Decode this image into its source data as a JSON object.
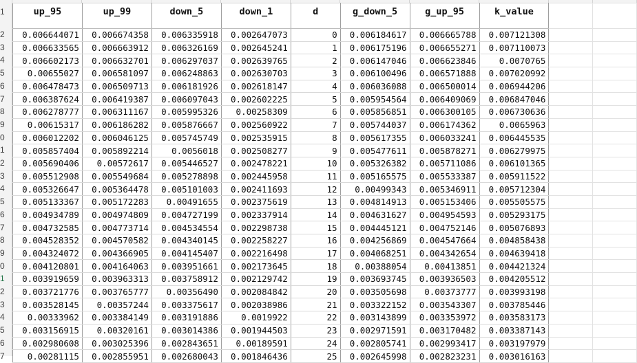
{
  "spreadsheet": {
    "headers": [
      "up_95",
      "up_99",
      "down_5",
      "down_1",
      "d",
      "g_down_5",
      "g_up_95",
      "k_value"
    ],
    "row_numbers": [
      "1",
      "2",
      "3",
      "4",
      "5",
      "6",
      "7",
      "8",
      "9",
      "0",
      "1",
      "2",
      "3",
      "4",
      "5",
      "6",
      "7",
      "8",
      "9",
      "0",
      "1",
      "2",
      "3",
      "4",
      "5",
      "6",
      "7"
    ],
    "selected_row_index": 20,
    "rows": [
      [
        "0.006644071",
        "0.006674358",
        "0.006335918",
        "0.002647073",
        "0",
        "0.006184617",
        "0.006665788",
        "0.007121308"
      ],
      [
        "0.006633565",
        "0.006663912",
        "0.006326169",
        "0.002645241",
        "1",
        "0.006175196",
        "0.006655271",
        "0.007110073"
      ],
      [
        "0.006602173",
        "0.006632701",
        "0.006297037",
        "0.002639765",
        "2",
        "0.006147046",
        "0.006623846",
        "0.0070765"
      ],
      [
        "0.00655027",
        "0.006581097",
        "0.006248863",
        "0.002630703",
        "3",
        "0.006100496",
        "0.006571888",
        "0.007020992"
      ],
      [
        "0.006478473",
        "0.006509713",
        "0.006181926",
        "0.002618147",
        "4",
        "0.006036088",
        "0.006500014",
        "0.006944206"
      ],
      [
        "0.006387624",
        "0.006419387",
        "0.006097043",
        "0.002602225",
        "5",
        "0.005954564",
        "0.006409069",
        "0.006847046"
      ],
      [
        "0.006278777",
        "0.006311167",
        "0.005995326",
        "0.00258309",
        "6",
        "0.005856851",
        "0.006300105",
        "0.006730636"
      ],
      [
        "0.00615317",
        "0.006186282",
        "0.005876667",
        "0.002560922",
        "7",
        "0.005744037",
        "0.006174362",
        "0.0065963"
      ],
      [
        "0.006012202",
        "0.006046125",
        "0.005745749",
        "0.002535915",
        "8",
        "0.005617355",
        "0.006033241",
        "0.006445535"
      ],
      [
        "0.005857404",
        "0.005892214",
        "0.0056018",
        "0.002508277",
        "9",
        "0.005477611",
        "0.005878271",
        "0.006279975"
      ],
      [
        "0.005690406",
        "0.00572617",
        "0.005446527",
        "0.002478221",
        "10",
        "0.005326382",
        "0.005711086",
        "0.006101365"
      ],
      [
        "0.005512908",
        "0.005549684",
        "0.005278898",
        "0.002445958",
        "11",
        "0.005165575",
        "0.005533387",
        "0.005911522"
      ],
      [
        "0.005326647",
        "0.005364478",
        "0.005101003",
        "0.002411693",
        "12",
        "0.00499343",
        "0.005346911",
        "0.005712304"
      ],
      [
        "0.005133367",
        "0.005172283",
        "0.00491655",
        "0.002375619",
        "13",
        "0.004814913",
        "0.005153406",
        "0.005505575"
      ],
      [
        "0.004934789",
        "0.004974809",
        "0.004727199",
        "0.002337914",
        "14",
        "0.004631627",
        "0.004954593",
        "0.005293175"
      ],
      [
        "0.004732585",
        "0.004773714",
        "0.004534554",
        "0.002298738",
        "15",
        "0.004445121",
        "0.004752146",
        "0.005076893"
      ],
      [
        "0.004528352",
        "0.004570582",
        "0.004340145",
        "0.002258227",
        "16",
        "0.004256869",
        "0.004547664",
        "0.004858438"
      ],
      [
        "0.004324072",
        "0.004366905",
        "0.004145407",
        "0.002216498",
        "17",
        "0.004068251",
        "0.004342654",
        "0.004639418"
      ],
      [
        "0.004120801",
        "0.004164063",
        "0.003951661",
        "0.002173645",
        "18",
        "0.00388054",
        "0.00413851",
        "0.004421324"
      ],
      [
        "0.003919659",
        "0.003963313",
        "0.003758912",
        "0.002129742",
        "19",
        "0.003693745",
        "0.003936503",
        "0.004205512"
      ],
      [
        "0.003721776",
        "0.003765777",
        "0.00356490",
        "0.002084842",
        "20",
        "0.003505698",
        "0.00373777",
        "0.003993198"
      ],
      [
        "0.003528145",
        "0.00357244",
        "0.003375617",
        "0.002038986",
        "21",
        "0.003322152",
        "0.003543307",
        "0.003785446"
      ],
      [
        "0.00333962",
        "0.003384149",
        "0.003191886",
        "0.0019922",
        "22",
        "0.003143899",
        "0.003353972",
        "0.003583173"
      ],
      [
        "0.003156915",
        "0.00320161",
        "0.003014386",
        "0.001944503",
        "23",
        "0.002971591",
        "0.003170482",
        "0.003387143"
      ],
      [
        "0.002980608",
        "0.003025396",
        "0.002843651",
        "0.00189591",
        "24",
        "0.002805741",
        "0.002993417",
        "0.003197979"
      ],
      [
        "0.00281115",
        "0.002855951",
        "0.002680043",
        "0.001846436",
        "25",
        "0.002645998",
        "0.002823231",
        "0.003016163"
      ]
    ]
  }
}
